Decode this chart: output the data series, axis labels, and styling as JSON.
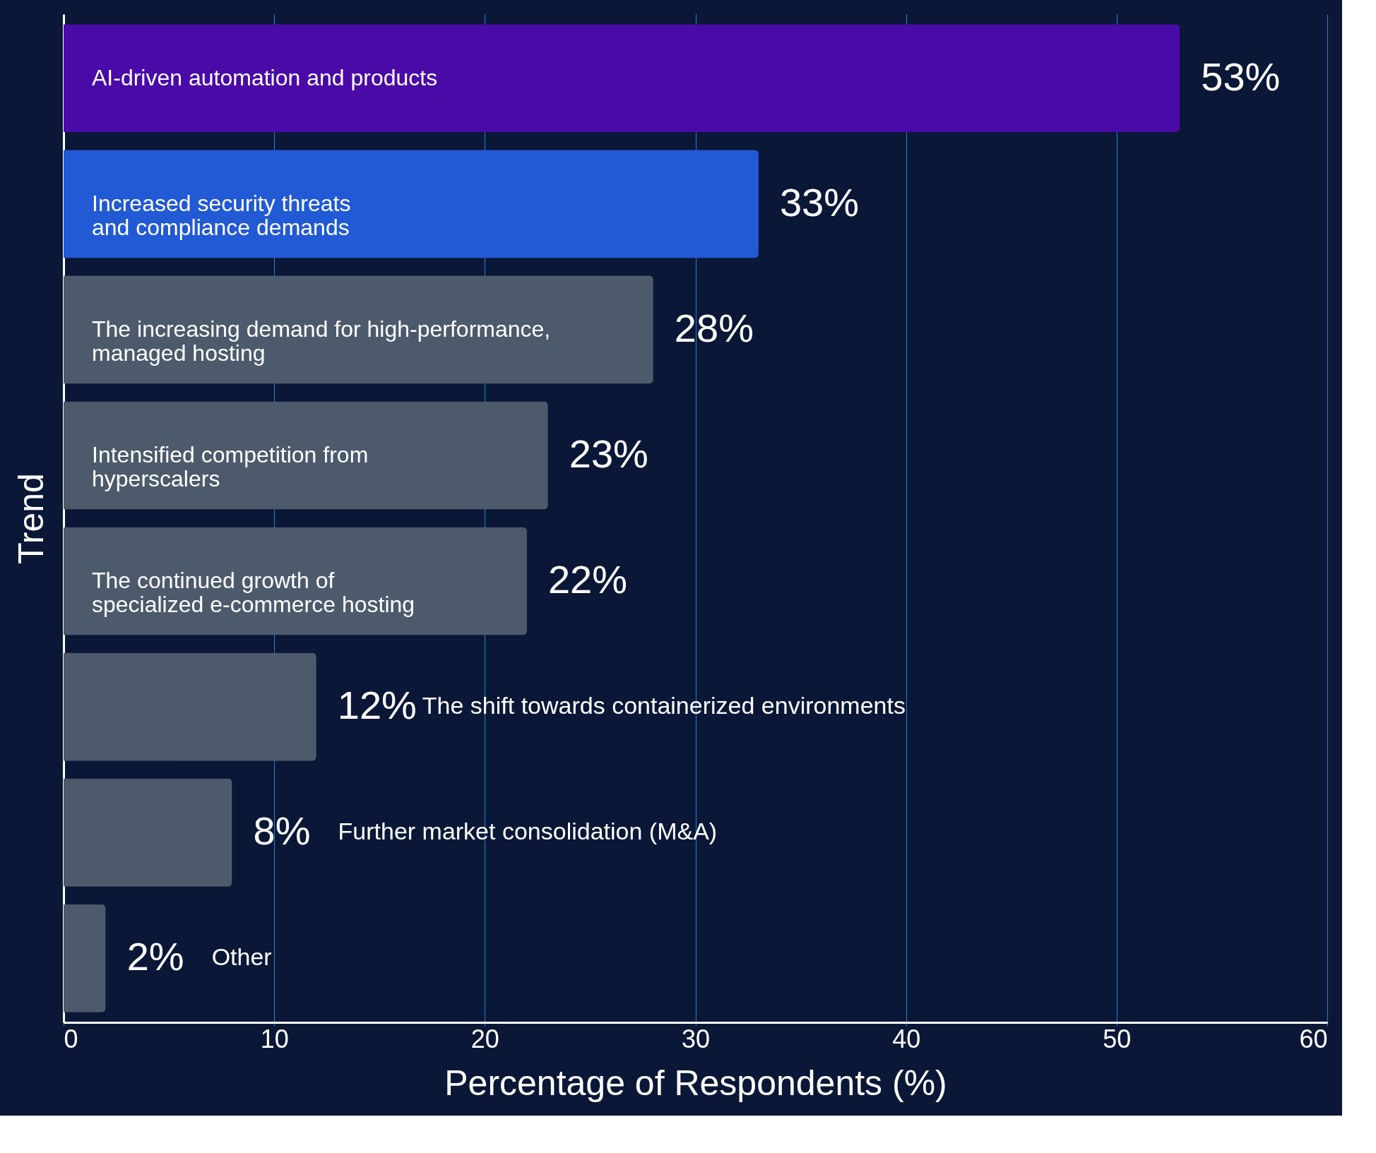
{
  "chart_data": {
    "type": "bar",
    "orientation": "horizontal",
    "xlabel": "Percentage of Respondents (%)",
    "ylabel": "Trend",
    "categories": [
      "AI-driven automation and products",
      "Increased security threats\nand compliance demands",
      "The increasing demand for high-performance,\nmanaged hosting",
      "Intensified competition from\nhyperscalers",
      "The continued growth of\nspecialized e-commerce hosting",
      "The shift towards containerized environments",
      "Further market consolidation (M&A)",
      "Other"
    ],
    "values": [
      53,
      33,
      28,
      23,
      22,
      12,
      8,
      2
    ],
    "value_labels": [
      "53%",
      "33%",
      "28%",
      "23%",
      "22%",
      "12%",
      "8%",
      "2%"
    ],
    "colors": [
      "#4a0aa8",
      "#2259d4",
      "#4d5a6c",
      "#4d5a6c",
      "#4d5a6c",
      "#4d5a6c",
      "#4d5a6c",
      "#4d5a6c"
    ],
    "xlim": [
      0,
      60
    ],
    "xticks": [
      0,
      10,
      20,
      30,
      40,
      50,
      60
    ],
    "grid": "x",
    "tick_labels": "x"
  }
}
